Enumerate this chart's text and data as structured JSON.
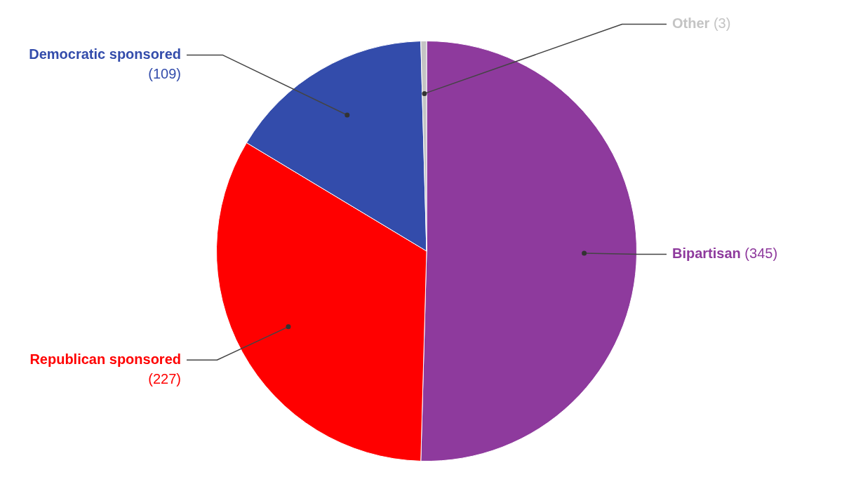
{
  "chart_data": {
    "type": "pie",
    "categories": [
      "Bipartisan",
      "Republican sponsored",
      "Democratic sponsored",
      "Other"
    ],
    "values": [
      345,
      227,
      109,
      3
    ],
    "colors": [
      "#8e3a9d",
      "#ff0000",
      "#334cab",
      "#c4c4c4"
    ],
    "value_labels": [
      "(345)",
      "(227)",
      "(109)",
      "(3)"
    ],
    "legend": false
  }
}
